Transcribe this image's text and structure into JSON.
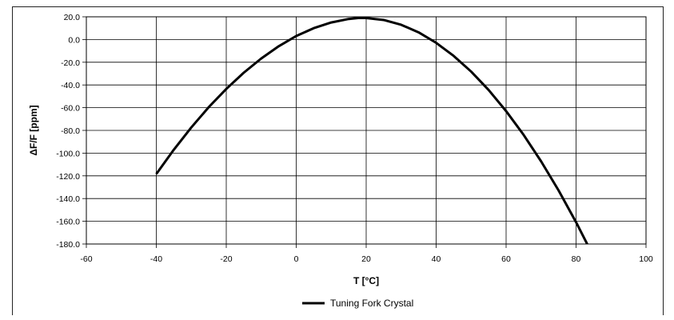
{
  "chart_data": {
    "type": "line",
    "title": "",
    "xlabel": "T [°C]",
    "ylabel": "ΔF/F [ppm]",
    "xlim": [
      -60,
      100
    ],
    "ylim": [
      -180,
      20
    ],
    "x_ticks": [
      -60,
      -40,
      -20,
      0,
      20,
      40,
      60,
      80,
      100
    ],
    "y_ticks": [
      20,
      0,
      -20,
      -40,
      -60,
      -80,
      -100,
      -120,
      -140,
      -160,
      -180
    ],
    "x_tick_labels": [
      "-60",
      "-40",
      "-20",
      "0",
      "20",
      "40",
      "60",
      "80",
      "100"
    ],
    "y_tick_labels": [
      "20.0",
      "0.0",
      "-20.0",
      "-40.0",
      "-60.0",
      "-80.0",
      "-100.0",
      "-120.0",
      "-140.0",
      "-160.0",
      "-180.0"
    ],
    "grid": true,
    "legend_position": "bottom-center",
    "series": [
      {
        "name": "Tuning Fork Crystal",
        "color": "#000000",
        "x": [
          -40,
          -35,
          -30,
          -25,
          -20,
          -15,
          -10,
          -5,
          0,
          5,
          10,
          15,
          18,
          20,
          25,
          30,
          35,
          40,
          45,
          50,
          55,
          60,
          65,
          70,
          75,
          80,
          85
        ],
        "y": [
          -118.4,
          -97.0,
          -77.4,
          -59.5,
          -43.5,
          -29.2,
          -16.7,
          -5.9,
          3.1,
          10.0,
          15.0,
          18.1,
          19.0,
          18.9,
          17.2,
          13.0,
          6.3,
          -2.9,
          -14.4,
          -28.2,
          -44.4,
          -63.0,
          -83.9,
          -107.2,
          -132.8,
          -160.8,
          -191.0
        ]
      }
    ]
  }
}
